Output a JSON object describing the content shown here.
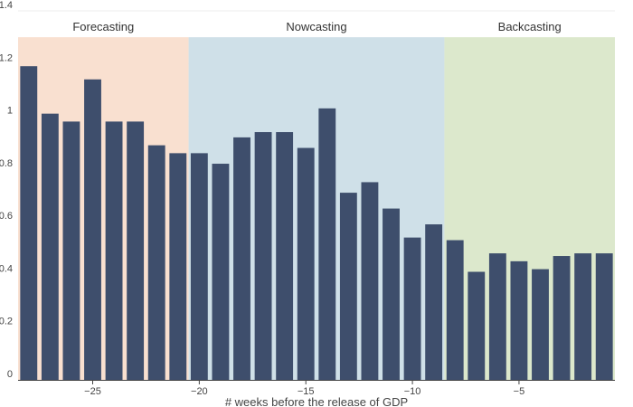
{
  "chart_data": {
    "type": "bar",
    "title": "",
    "xlabel": "# weeks before the release of GDP",
    "ylabel": "",
    "xlim": [
      -28.5,
      -0.5
    ],
    "ylim": [
      0,
      1.4
    ],
    "x_ticks": [
      {
        "value": -25,
        "label": "−25"
      },
      {
        "value": -20,
        "label": "−20"
      },
      {
        "value": -15,
        "label": "−15"
      },
      {
        "value": -10,
        "label": "−10"
      },
      {
        "value": -5,
        "label": "−5"
      }
    ],
    "y_ticks": [
      {
        "value": 0,
        "label": "0"
      },
      {
        "value": 0.2,
        "label": "0.2"
      },
      {
        "value": 0.4,
        "label": "0.4"
      },
      {
        "value": 0.6,
        "label": "0.6"
      },
      {
        "value": 0.8,
        "label": "0.8"
      },
      {
        "value": 1.0,
        "label": "1"
      },
      {
        "value": 1.2,
        "label": "1.2"
      },
      {
        "value": 1.4,
        "label": "1.4"
      }
    ],
    "x": [
      -28,
      -27,
      -26,
      -25,
      -24,
      -23,
      -22,
      -21,
      -20,
      -19,
      -18,
      -17,
      -16,
      -15,
      -14,
      -13,
      -12,
      -11,
      -10,
      -9,
      -8,
      -7,
      -6,
      -5,
      -4,
      -3,
      -2,
      -1
    ],
    "values": [
      1.19,
      1.01,
      0.98,
      1.14,
      0.98,
      0.98,
      0.89,
      0.86,
      0.86,
      0.82,
      0.92,
      0.94,
      0.94,
      0.88,
      1.03,
      0.71,
      0.75,
      0.65,
      0.54,
      0.59,
      0.53,
      0.41,
      0.48,
      0.45,
      0.42,
      0.47,
      0.48,
      0.48
    ],
    "regions": [
      {
        "label": "Forecasting",
        "x0": -28.5,
        "x1": -20.5,
        "y0": 0,
        "y1": 1.3,
        "color": "#f9e0d0"
      },
      {
        "label": "Nowcasting",
        "x0": -20.5,
        "x1": -8.5,
        "y0": 0,
        "y1": 1.3,
        "color": "#cfe0e8"
      },
      {
        "label": "Backcasting",
        "x0": -8.5,
        "x1": -0.5,
        "y0": 0,
        "y1": 1.3,
        "color": "#dce8cc"
      }
    ],
    "colors": {
      "bar": "#3e4e6c",
      "grid": "#eeeeee",
      "axis": "#444444"
    }
  }
}
